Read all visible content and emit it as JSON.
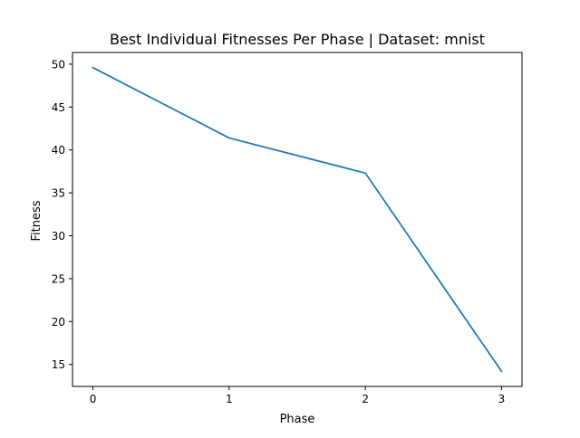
{
  "chart_data": {
    "type": "line",
    "title": "Best Individual Fitnesses Per Phase | Dataset: mnist",
    "xlabel": "Phase",
    "ylabel": "Fitness",
    "x": [
      0,
      1,
      2,
      3
    ],
    "series": [
      {
        "values": [
          49.6,
          41.4,
          37.3,
          14.2
        ],
        "color": "#1f77b4"
      }
    ],
    "xticks": [
      0,
      1,
      2,
      3
    ],
    "yticks": [
      15,
      20,
      25,
      30,
      35,
      40,
      45,
      50
    ],
    "xlim": [
      -0.15,
      3.15
    ],
    "ylim": [
      12.44,
      51.36
    ],
    "grid": false
  }
}
